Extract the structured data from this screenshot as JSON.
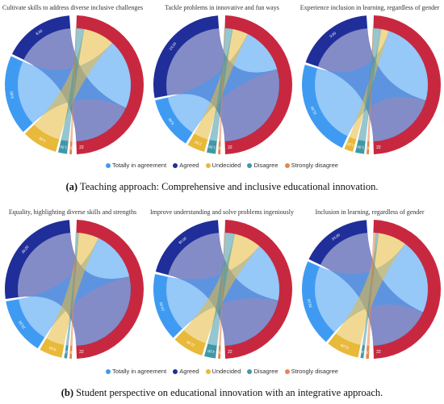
{
  "colors": {
    "Totally in agreement": "#3f9bf2",
    "Agreed": "#1f2e99",
    "Undecided": "#e8b93a",
    "Disagree": "#3f98a8",
    "Strongly disagree": "#e5874d",
    "target": "#c8283f"
  },
  "legend": [
    "Totally in agreement",
    "Agreed",
    "Undecided",
    "Disagree",
    "Strongly disagree"
  ],
  "captions": {
    "a_tag": "(a)",
    "a_text": "Teaching approach: Comprehensive and inclusive educational innovation.",
    "b_tag": "(b)",
    "b_text": "Student perspective on educational innovation with an integrative approach."
  },
  "chart_data": [
    {
      "type": "chord",
      "title": "Cultivate skills to address diverse inclusive challenges",
      "categories": [
        "Totally in agreement",
        "Agreed",
        "Undecided",
        "Disagree",
        "Strongly disagree"
      ],
      "values": [
        9,
        8,
        4,
        1,
        0
      ],
      "value_labels": [
        "9,00",
        "8,00",
        "4,00",
        "1,00",
        "0"
      ],
      "target_label": "22"
    },
    {
      "type": "chord",
      "title": "Tackle problems in innovative and fun ways",
      "categories": [
        "Totally in agreement",
        "Agreed",
        "Undecided",
        "Disagree",
        "Strongly disagree"
      ],
      "values": [
        6,
        13,
        2,
        1,
        0
      ],
      "value_labels": [
        "6,00",
        "13,00",
        "2,00",
        "1,00",
        "0"
      ],
      "target_label": "22"
    },
    {
      "type": "chord",
      "title": "Experience inclusion in learning, regardless of gender",
      "categories": [
        "Totally in agreement",
        "Agreed",
        "Undecided",
        "Disagree",
        "Strongly disagree"
      ],
      "values": [
        11,
        9,
        1,
        1,
        0
      ],
      "value_labels": [
        "11,00",
        "9,00",
        "1,00",
        "1,00",
        "0"
      ],
      "target_label": "22"
    },
    {
      "type": "chord",
      "title": "Equality, highlighting diverse skills and strengths",
      "categories": [
        "Totally in agreement",
        "Agreed",
        "Undecided",
        "Disagree",
        "Strongly disagree"
      ],
      "values": [
        20,
        39,
        8,
        1,
        0
      ],
      "value_labels": [
        "20,00",
        "39,00",
        "8,00",
        "1,00",
        "0"
      ],
      "target_label": "22"
    },
    {
      "type": "chord",
      "title": "Improve understanding and solve problems ingeniously",
      "categories": [
        "Totally in agreement",
        "Agreed",
        "Undecided",
        "Disagree",
        "Strongly disagree"
      ],
      "values": [
        24,
        30,
        11,
        4,
        0
      ],
      "value_labels": [
        "24,00",
        "30,00",
        "11,00",
        "4,00",
        "0"
      ],
      "target_label": "22"
    },
    {
      "type": "chord",
      "title": "Inclusion in learning, regardless of gender",
      "categories": [
        "Totally in agreement",
        "Agreed",
        "Undecided",
        "Disagree",
        "Strongly disagree"
      ],
      "values": [
        29,
        24,
        11,
        1,
        1
      ],
      "value_labels": [
        "29,00",
        "24,00",
        "11,00",
        "1,00",
        "1,00"
      ],
      "target_label": "22"
    }
  ]
}
